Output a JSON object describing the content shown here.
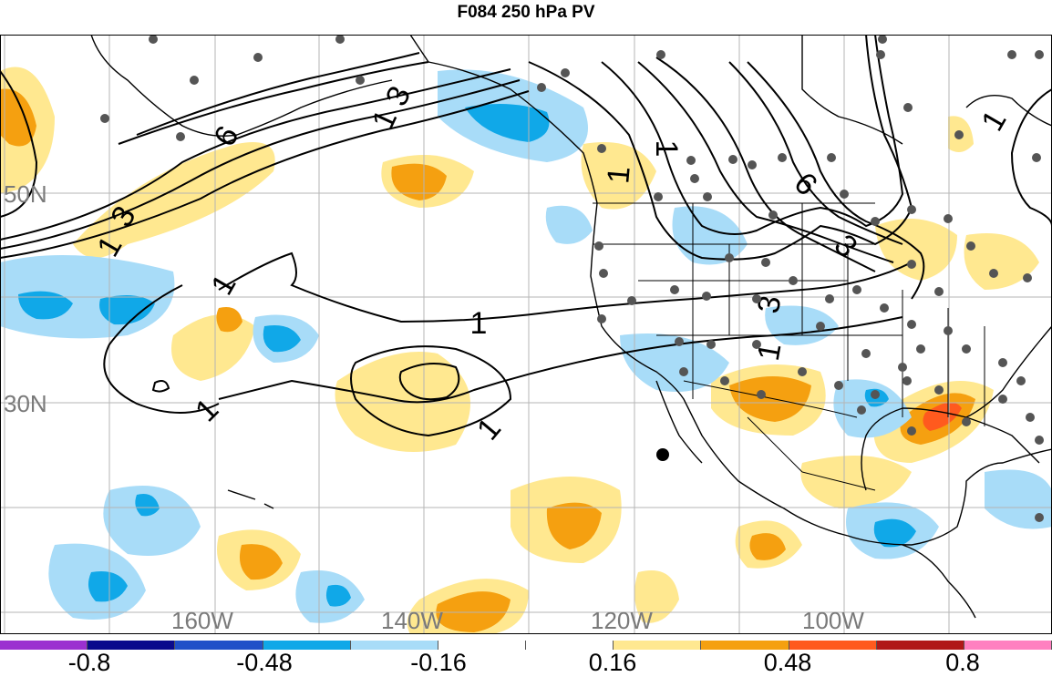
{
  "title": "F084 250 hPa PV",
  "latitude_labels": [
    "50N",
    "30N"
  ],
  "longitude_labels": [
    "160W",
    "140W",
    "120W",
    "100W"
  ],
  "contour_labels": [
    "1",
    "3",
    "6",
    "1",
    "3",
    "1",
    "1",
    "1",
    "1",
    "1",
    "6",
    "3",
    "3",
    "1",
    "1",
    "1"
  ],
  "colorbar": {
    "colors": [
      "#9b30d0",
      "#0a0a8c",
      "#2050c8",
      "#10a8e8",
      "#a8dcf8",
      "#ffffff",
      "#ffffff",
      "#ffe890",
      "#f5a010",
      "#ff5a1e",
      "#b01818",
      "#ff80c0"
    ],
    "tick_labels": [
      "-0.8",
      "-0.48",
      "-0.16",
      "0.16",
      "0.48",
      "0.8"
    ]
  }
}
